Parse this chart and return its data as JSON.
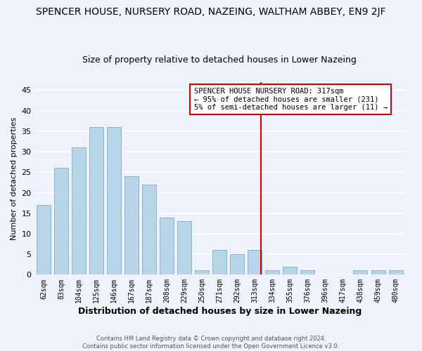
{
  "title": "SPENCER HOUSE, NURSERY ROAD, NAZEING, WALTHAM ABBEY, EN9 2JF",
  "subtitle": "Size of property relative to detached houses in Lower Nazeing",
  "xlabel": "Distribution of detached houses by size in Lower Nazeing",
  "ylabel": "Number of detached properties",
  "bar_color": "#b8d4e8",
  "bar_edge_color": "#8ab4cc",
  "bin_labels": [
    "62sqm",
    "83sqm",
    "104sqm",
    "125sqm",
    "146sqm",
    "167sqm",
    "187sqm",
    "208sqm",
    "229sqm",
    "250sqm",
    "271sqm",
    "292sqm",
    "313sqm",
    "334sqm",
    "355sqm",
    "376sqm",
    "396sqm",
    "417sqm",
    "438sqm",
    "459sqm",
    "480sqm"
  ],
  "bar_heights": [
    17,
    26,
    31,
    36,
    36,
    24,
    22,
    14,
    13,
    1,
    6,
    5,
    6,
    1,
    2,
    1,
    0,
    0,
    1,
    1,
    1
  ],
  "annotation_line1": "SPENCER HOUSE NURSERY ROAD: 317sqm",
  "annotation_line2": "← 95% of detached houses are smaller (231)",
  "annotation_line3": "5% of semi-detached houses are larger (11) →",
  "footer_line1": "Contains HM Land Registry data © Crown copyright and database right 2024.",
  "footer_line2": "Contains public sector information licensed under the Open Government Licence v3.0.",
  "ylim": [
    0,
    47
  ],
  "background_color": "#eef2fa",
  "grid_color": "white",
  "red_line_color": "#cc0000",
  "annotation_box_color": "white",
  "annotation_box_edge_color": "#cc0000",
  "property_bin_idx": 12
}
